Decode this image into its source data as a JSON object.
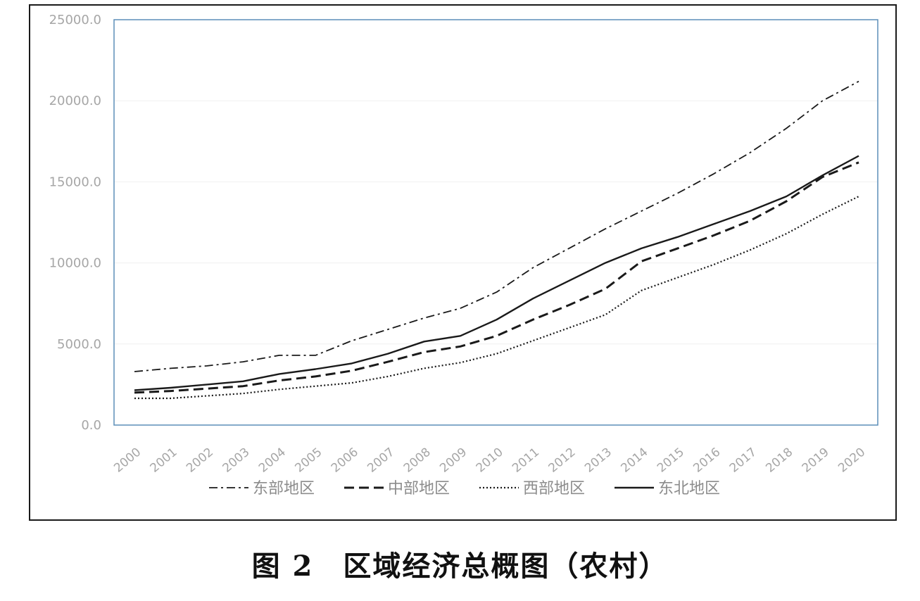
{
  "caption": "图 2　区域经济总概图（农村）",
  "chart_data": {
    "type": "line",
    "title": "",
    "xlabel": "",
    "ylabel": "",
    "ylim": [
      0,
      25000
    ],
    "yticks": [
      "0.0",
      "5000.0",
      "10000.0",
      "15000.0",
      "20000.0",
      "25000.0"
    ],
    "ytick_values": [
      0,
      5000,
      10000,
      15000,
      20000,
      25000
    ],
    "grid": true,
    "legend_position": "bottom",
    "x": [
      "2000",
      "2001",
      "2002",
      "2003",
      "2004",
      "2005",
      "2006",
      "2007",
      "2008",
      "2009",
      "2010",
      "2011",
      "2012",
      "2013",
      "2014",
      "2015",
      "2016",
      "2017",
      "2018",
      "2019",
      "2020"
    ],
    "series": [
      {
        "name": "东部地区",
        "dash": "dash-dot",
        "color": "#1a1a1a",
        "values": [
          3300,
          3500,
          3650,
          3900,
          4300,
          4300,
          5200,
          5900,
          6600,
          7200,
          8200,
          9700,
          10900,
          12100,
          13200,
          14300,
          15500,
          16800,
          18300,
          20000,
          21200
        ]
      },
      {
        "name": "中部地区",
        "dash": "dashed",
        "color": "#1a1a1a",
        "values": [
          2000,
          2100,
          2250,
          2400,
          2750,
          3000,
          3350,
          3900,
          4500,
          4850,
          5500,
          6500,
          7400,
          8400,
          10100,
          10900,
          11700,
          12600,
          13800,
          15300,
          16200
        ]
      },
      {
        "name": "西部地区",
        "dash": "dotted",
        "color": "#1a1a1a",
        "values": [
          1650,
          1650,
          1800,
          1950,
          2200,
          2400,
          2600,
          3000,
          3500,
          3850,
          4400,
          5200,
          6000,
          6800,
          8300,
          9100,
          9900,
          10800,
          11800,
          13000,
          14100
        ]
      },
      {
        "name": "东北地区",
        "dash": "solid",
        "color": "#1a1a1a",
        "values": [
          2150,
          2300,
          2500,
          2700,
          3150,
          3450,
          3800,
          4400,
          5150,
          5500,
          6500,
          7800,
          8900,
          10000,
          10900,
          11600,
          12400,
          13200,
          14100,
          15400,
          16600
        ]
      }
    ]
  }
}
